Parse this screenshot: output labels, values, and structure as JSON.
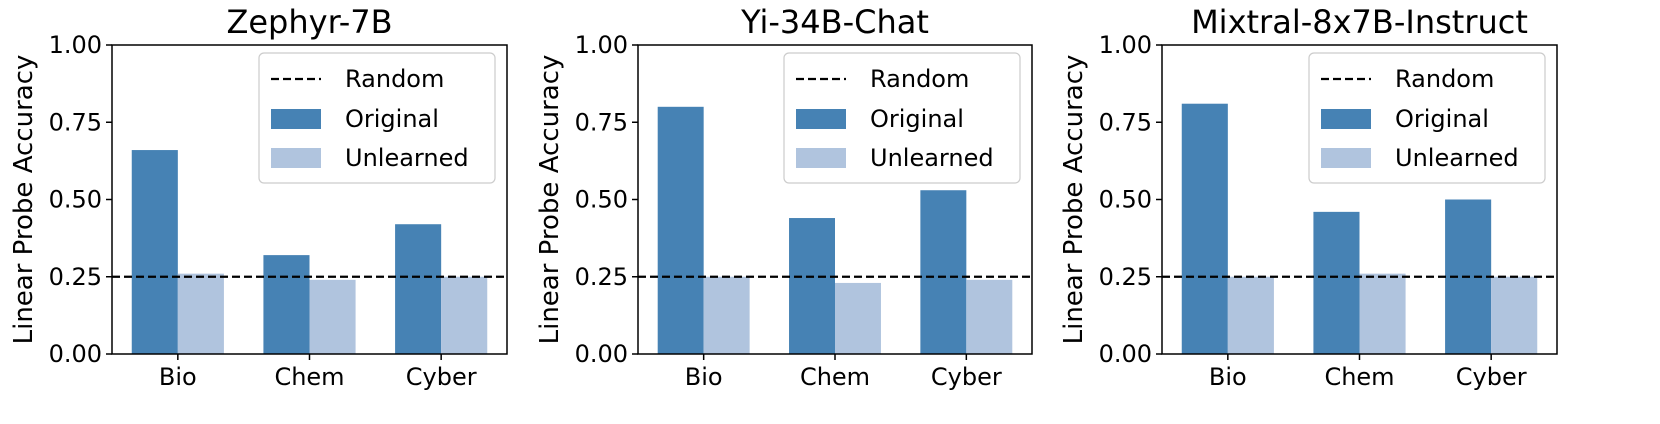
{
  "chart_data": [
    {
      "type": "bar",
      "title": "Zephyr-7B",
      "xlabel": "",
      "ylabel": "Linear Probe Accuracy",
      "categories": [
        "Bio",
        "Chem",
        "Cyber"
      ],
      "series": [
        {
          "name": "Original",
          "values": [
            0.66,
            0.32,
            0.42
          ]
        },
        {
          "name": "Unlearned",
          "values": [
            0.26,
            0.24,
            0.25
          ]
        }
      ],
      "reference_line": {
        "name": "Random",
        "value": 0.25
      },
      "ylim": [
        0,
        1
      ],
      "yticks": [
        "0.00",
        "0.25",
        "0.50",
        "0.75",
        "1.00"
      ],
      "legend": "top-right",
      "grid": false
    },
    {
      "type": "bar",
      "title": "Yi-34B-Chat",
      "xlabel": "",
      "ylabel": "Linear Probe Accuracy",
      "categories": [
        "Bio",
        "Chem",
        "Cyber"
      ],
      "series": [
        {
          "name": "Original",
          "values": [
            0.8,
            0.44,
            0.53
          ]
        },
        {
          "name": "Unlearned",
          "values": [
            0.25,
            0.23,
            0.24
          ]
        }
      ],
      "reference_line": {
        "name": "Random",
        "value": 0.25
      },
      "ylim": [
        0,
        1
      ],
      "yticks": [
        "0.00",
        "0.25",
        "0.50",
        "0.75",
        "1.00"
      ],
      "legend": "top-right",
      "grid": false
    },
    {
      "type": "bar",
      "title": "Mixtral-8x7B-Instruct",
      "xlabel": "",
      "ylabel": "Linear Probe Accuracy",
      "categories": [
        "Bio",
        "Chem",
        "Cyber"
      ],
      "series": [
        {
          "name": "Original",
          "values": [
            0.81,
            0.46,
            0.5
          ]
        },
        {
          "name": "Unlearned",
          "values": [
            0.25,
            0.26,
            0.25
          ]
        }
      ],
      "reference_line": {
        "name": "Random",
        "value": 0.25
      },
      "ylim": [
        0,
        1
      ],
      "yticks": [
        "0.00",
        "0.25",
        "0.50",
        "0.75",
        "1.00"
      ],
      "legend": "top-right",
      "grid": false
    }
  ],
  "colors": {
    "original": "#4682b4",
    "unlearned": "#b0c4de",
    "random_line": "#000000",
    "axis": "#000000"
  }
}
